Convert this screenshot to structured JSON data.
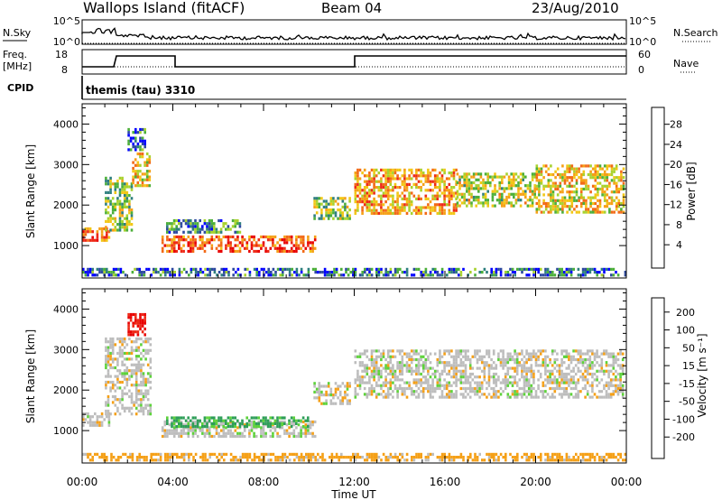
{
  "header": {
    "station": "Wallops Island (fitACF)",
    "beam": "Beam 04",
    "date": "23/Aug/2010"
  },
  "status_panels": {
    "nsky_label": "N.Sky",
    "nsky_ticks": [
      "10^5",
      "10^0"
    ],
    "nsearch_label": "N.Search",
    "nsearch_ticks": [
      "10^5",
      "10^0"
    ],
    "freq_label_line1": "Freq.",
    "freq_label_line2": "[MHz]",
    "freq_ticks": [
      "18",
      "8"
    ],
    "nave_label": "Nave",
    "nave_ticks": [
      "60",
      "0"
    ],
    "cpid_label": "CPID",
    "cpid_value": "themis (tau) 3310"
  },
  "time_axis": {
    "xlabel": "Time UT",
    "ticks": [
      "00:00",
      "04:00",
      "08:00",
      "12:00",
      "16:00",
      "20:00",
      "00:00"
    ]
  },
  "chart_data": [
    {
      "type": "heatmap",
      "panel": "power",
      "ylabel": "Slant Range [km]",
      "y_ticks": [
        "1000",
        "2000",
        "3000",
        "4000"
      ],
      "ylim": [
        200,
        4500
      ],
      "xlim_hours": [
        0,
        24
      ],
      "colorbar_label": "Power [dB]",
      "colorbar_ticks": [
        "4",
        "8",
        "12",
        "16",
        "20",
        "24",
        "28"
      ],
      "colorbar_colors": [
        "#0000ff",
        "#2e4aa0",
        "#2f7f7f",
        "#4caf3a",
        "#a8d22f",
        "#f2c716",
        "#f5a017",
        "#f26a17",
        "#ee2a17",
        "#e80000"
      ],
      "regions": [
        {
          "t0": 0.0,
          "t1": 1.2,
          "r0": 1150,
          "r1": 1450,
          "power": 22
        },
        {
          "t0": 1.0,
          "t1": 2.2,
          "r0": 1400,
          "r1": 2700,
          "power": 14
        },
        {
          "t0": 2.2,
          "t1": 3.0,
          "r0": 2500,
          "r1": 3300,
          "power": 18
        },
        {
          "t0": 2.0,
          "t1": 2.8,
          "r0": 3400,
          "r1": 3900,
          "power": 8
        },
        {
          "t0": 3.5,
          "t1": 10.3,
          "r0": 850,
          "r1": 1250,
          "power": 24
        },
        {
          "t0": 3.7,
          "t1": 7.0,
          "r0": 1350,
          "r1": 1650,
          "power": 10
        },
        {
          "t0": 10.2,
          "t1": 11.8,
          "r0": 1700,
          "r1": 2200,
          "power": 14
        },
        {
          "t0": 12.0,
          "t1": 16.5,
          "r0": 1800,
          "r1": 2900,
          "power": 20
        },
        {
          "t0": 16.5,
          "t1": 20.0,
          "r0": 2000,
          "r1": 2800,
          "power": 16
        },
        {
          "t0": 20.0,
          "t1": 23.9,
          "r0": 1800,
          "r1": 3000,
          "power": 18
        },
        {
          "t0": 0.0,
          "t1": 24.0,
          "r0": 250,
          "r1": 450,
          "power": 8
        }
      ]
    },
    {
      "type": "heatmap",
      "panel": "velocity",
      "ylabel": "Slant Range [km]",
      "y_ticks": [
        "1000",
        "2000",
        "3000",
        "4000"
      ],
      "ylim": [
        200,
        4500
      ],
      "xlim_hours": [
        0,
        24
      ],
      "colorbar_label": "Velocity [m s⁻¹]",
      "colorbar_ticks": [
        "200",
        "100",
        "50",
        "15",
        "-15",
        "-50",
        "-100",
        "-200"
      ],
      "colorbar_colors": [
        "#1f2fbf",
        "#2e63a6",
        "#2e9e58",
        "#5dd23a",
        "#bdbdbd",
        "#bdbdbd",
        "#f5a017",
        "#f26a17",
        "#ee2a17",
        "#e80000"
      ],
      "regions": [
        {
          "t0": 0.0,
          "t1": 1.2,
          "r0": 1150,
          "r1": 1450,
          "velocity": 0
        },
        {
          "t0": 1.0,
          "t1": 3.0,
          "r0": 1400,
          "r1": 3300,
          "velocity": 0
        },
        {
          "t0": 2.0,
          "t1": 2.8,
          "r0": 3400,
          "r1": 3900,
          "velocity": -150
        },
        {
          "t0": 3.5,
          "t1": 10.3,
          "r0": 850,
          "r1": 1250,
          "velocity": 0
        },
        {
          "t0": 3.7,
          "t1": 10.0,
          "r0": 1100,
          "r1": 1350,
          "velocity": 40
        },
        {
          "t0": 10.2,
          "t1": 11.8,
          "r0": 1700,
          "r1": 2200,
          "velocity": 0
        },
        {
          "t0": 12.0,
          "t1": 23.9,
          "r0": 1800,
          "r1": 3000,
          "velocity": 0
        },
        {
          "t0": 0.0,
          "t1": 24.0,
          "r0": 250,
          "r1": 450,
          "velocity": -30
        }
      ]
    }
  ]
}
